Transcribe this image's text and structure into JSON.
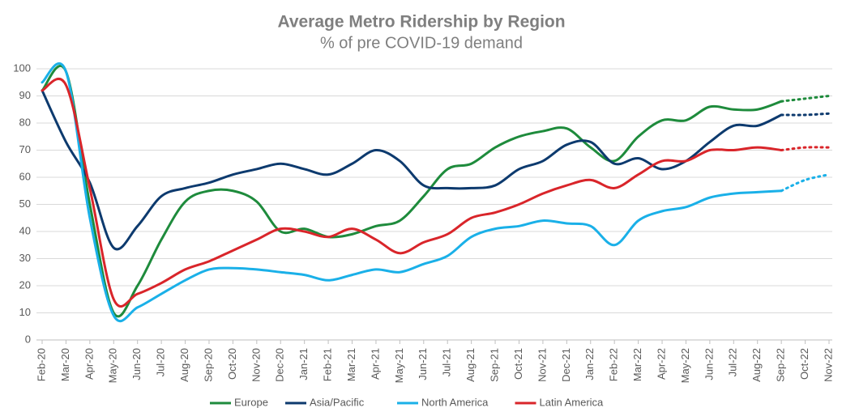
{
  "chart_data": {
    "type": "line",
    "title": "Average Metro Ridership by Region",
    "subtitle": "% of pre COVID-19 demand",
    "categories": [
      "Feb-20",
      "Mar-20",
      "Apr-20",
      "May-20",
      "Jun-20",
      "Jul-20",
      "Aug-20",
      "Sep-20",
      "Oct-20",
      "Nov-20",
      "Dec-20",
      "Jan-21",
      "Feb-21",
      "Mar-21",
      "Apr-21",
      "May-21",
      "Jun-21",
      "Jul-21",
      "Aug-21",
      "Sep-21",
      "Oct-21",
      "Nov-21",
      "Dec-21",
      "Jan-22",
      "Feb-22",
      "Mar-22",
      "Apr-22",
      "May-22",
      "Jun-22",
      "Jul-22",
      "Aug-22",
      "Sep-22",
      "Oct-22",
      "Nov-22"
    ],
    "series": [
      {
        "name": "Europe",
        "color": "#1e8b3c",
        "values": [
          92,
          99,
          50,
          10,
          20,
          37,
          51,
          55,
          55,
          51,
          40,
          41,
          38,
          39,
          42,
          44,
          53,
          63,
          65,
          71,
          75,
          77,
          78,
          71,
          66,
          75,
          81,
          81,
          86,
          85,
          85,
          88,
          89,
          90
        ]
      },
      {
        "name": "Asia/Pacific",
        "color": "#0d3a6e",
        "values": [
          92,
          73,
          58,
          34,
          42,
          53,
          56,
          58,
          61,
          63,
          65,
          63,
          61,
          65,
          70,
          66,
          57,
          56,
          56,
          57,
          63,
          66,
          72,
          73,
          65,
          67,
          63,
          66,
          73,
          79,
          79,
          83,
          83,
          83.5
        ]
      },
      {
        "name": "North America",
        "color": "#1ab0e8",
        "values": [
          95,
          99,
          45,
          9,
          12,
          17,
          22,
          26,
          26.5,
          26,
          25,
          24,
          22,
          24,
          26,
          25,
          28,
          31,
          38,
          41,
          42,
          44,
          43,
          42,
          35,
          44,
          47.5,
          49,
          52.5,
          54,
          54.5,
          55,
          59,
          61
        ]
      },
      {
        "name": "Latin America",
        "color": "#d9252a",
        "values": [
          92,
          94,
          56,
          15,
          17,
          21,
          26,
          29,
          33,
          37,
          41,
          40,
          38,
          41,
          37,
          32,
          36,
          39,
          45,
          47,
          50,
          54,
          57,
          59,
          56,
          61,
          66,
          66,
          70,
          70,
          71,
          70,
          71,
          71
        ]
      }
    ],
    "projection_from": "Sep-22",
    "ylim": [
      0,
      100
    ],
    "yticks": [
      0,
      10,
      20,
      30,
      40,
      50,
      60,
      70,
      80,
      90,
      100
    ],
    "grid": true,
    "legend": "bottom"
  }
}
